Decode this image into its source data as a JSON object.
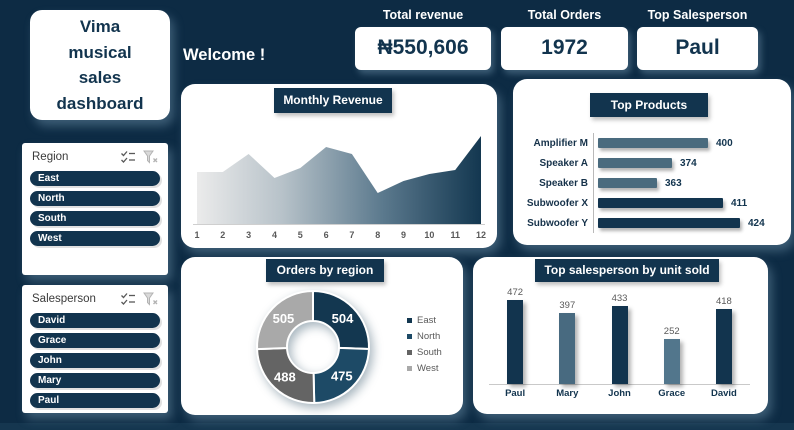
{
  "colors": {
    "background": "#0d2b44",
    "navy": "#12344e",
    "card": "#ffffff",
    "label_gray": "#595959"
  },
  "title_lines": [
    "Vima",
    "musical",
    "sales",
    "dashboard"
  ],
  "welcome": "Welcome !",
  "kpis": [
    {
      "label": "Total revenue",
      "value": "₦550,606"
    },
    {
      "label": "Total Orders",
      "value": "1972"
    },
    {
      "label": "Top Salesperson",
      "value": "Paul"
    }
  ],
  "slicers": [
    {
      "title": "Region",
      "icons": [
        "multi-select-icon",
        "clear-filter-icon"
      ],
      "items": [
        "East",
        "North",
        "South",
        "West"
      ]
    },
    {
      "title": "Salesperson",
      "icons": [
        "multi-select-icon",
        "clear-filter-icon"
      ],
      "items": [
        "David",
        "Grace",
        "John",
        "Mary",
        "Paul"
      ]
    }
  ],
  "chart_data": [
    {
      "type": "area",
      "title": "Monthly Revenue",
      "x": [
        "1",
        "2",
        "3",
        "4",
        "5",
        "6",
        "7",
        "8",
        "9",
        "10",
        "11",
        "12"
      ],
      "relative_heights": [
        52,
        52,
        70,
        46,
        56,
        77,
        70,
        31,
        43,
        50,
        54,
        88
      ],
      "note": "no y-axis labels shown; heights are relative estimates in px of plot height",
      "gradient_colors": [
        "#ebebeb",
        "#b7c2c9",
        "#5c7a8e",
        "#133750"
      ],
      "grid": false,
      "legend_position": "none"
    },
    {
      "type": "bar",
      "orientation": "horizontal",
      "title": "Top Products",
      "categories": [
        "Amplifier M",
        "Speaker A",
        "Speaker B",
        "Subwoofer X",
        "Subwoofer Y"
      ],
      "values": [
        400,
        374,
        363,
        411,
        424
      ],
      "colors": [
        "#4a6b7e",
        "#4a6b7e",
        "#4a6b7e",
        "#12344e",
        "#12344e"
      ],
      "axis_min_estimate": 320,
      "data_labels": true,
      "legend_position": "none"
    },
    {
      "type": "pie",
      "subtype": "donut",
      "title": "Orders by region",
      "categories": [
        "East",
        "North",
        "South",
        "West"
      ],
      "values": [
        504,
        475,
        488,
        505
      ],
      "colors": [
        "#133750",
        "#1d4a66",
        "#646464",
        "#a9a9a9"
      ],
      "data_labels": true,
      "label_color": "#ffffff",
      "legend_position": "right"
    },
    {
      "type": "bar",
      "orientation": "vertical",
      "title": "Top salesperson by unit sold",
      "categories": [
        "Paul",
        "Mary",
        "John",
        "Grace",
        "David"
      ],
      "values": [
        472,
        397,
        433,
        252,
        418
      ],
      "colors": [
        "#12344e",
        "#486a80",
        "#12344e",
        "#52768c",
        "#12344e"
      ],
      "ylim": [
        0,
        500
      ],
      "data_labels": true,
      "legend_position": "none"
    }
  ]
}
